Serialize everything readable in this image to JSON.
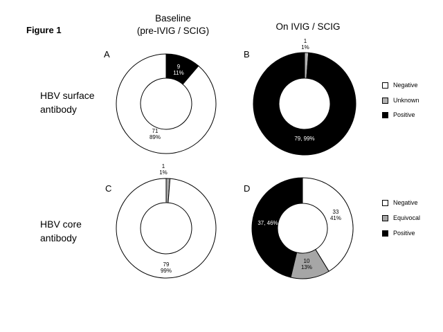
{
  "figure_label": "Figure 1",
  "column_headers": {
    "baseline_line1": "Baseline",
    "baseline_line2": "(pre-IVIG / SCIG)",
    "on_treatment": "On IVIG / SCIG"
  },
  "row_headers": {
    "surface_line1": "HBV surface",
    "surface_line2": "antibody",
    "core_line1": "HBV core",
    "core_line2": "antibody"
  },
  "legends": {
    "top": [
      {
        "label": "Negative",
        "color": "#ffffff"
      },
      {
        "label": "Unknown",
        "color": "#b3b3b3"
      },
      {
        "label": "Positive",
        "color": "#000000"
      }
    ],
    "bottom": [
      {
        "label": "Negative",
        "color": "#ffffff"
      },
      {
        "label": "Equivocal",
        "color": "#a6a6a6"
      },
      {
        "label": "Positive",
        "color": "#000000"
      }
    ]
  },
  "chart_data": [
    {
      "type": "pie",
      "panel": "A",
      "slices": [
        {
          "category": "Positive",
          "count": 9,
          "percent": 11,
          "color": "#000000",
          "label_lines": [
            "9",
            "11%"
          ]
        },
        {
          "category": "Negative",
          "count": 71,
          "percent": 89,
          "color": "#ffffff",
          "label_lines": [
            "71",
            "89%"
          ]
        }
      ]
    },
    {
      "type": "pie",
      "panel": "B",
      "slices": [
        {
          "category": "Unknown",
          "count": 1,
          "percent": 1,
          "color": "#b3b3b3",
          "label_lines": [
            "1",
            "1%"
          ]
        },
        {
          "category": "Positive",
          "count": 79,
          "percent": 99,
          "color": "#000000",
          "label_lines": [
            "79, 99%"
          ]
        }
      ]
    },
    {
      "type": "pie",
      "panel": "C",
      "slices": [
        {
          "category": "Equivocal",
          "count": 1,
          "percent": 1,
          "color": "#a6a6a6",
          "label_lines": [
            "1",
            "1%"
          ]
        },
        {
          "category": "Negative",
          "count": 79,
          "percent": 99,
          "color": "#ffffff",
          "label_lines": [
            "79",
            "99%"
          ]
        }
      ]
    },
    {
      "type": "pie",
      "panel": "D",
      "slices": [
        {
          "category": "Negative",
          "count": 33,
          "percent": 41,
          "color": "#ffffff",
          "label_lines": [
            "33",
            "41%"
          ]
        },
        {
          "category": "Equivocal",
          "count": 10,
          "percent": 13,
          "color": "#a6a6a6",
          "label_lines": [
            "10",
            "13%"
          ]
        },
        {
          "category": "Positive",
          "count": 37,
          "percent": 46,
          "color": "#000000",
          "label_lines": [
            "37, 46%"
          ]
        }
      ]
    }
  ]
}
